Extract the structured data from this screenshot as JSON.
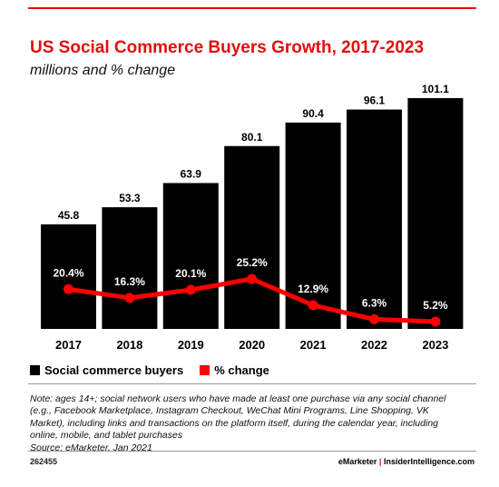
{
  "header": {
    "title": "US Social Commerce Buyers Growth, 2017-2023",
    "subtitle": "millions and % change"
  },
  "legend": {
    "items": [
      {
        "label": "Social commerce buyers",
        "color": "#000000"
      },
      {
        "label": "% change",
        "color": "#ff0000"
      }
    ]
  },
  "note": "Note: ages 14+; social network users who have made at least one purchase via any social channel (e.g., Facebook Marketplace, Instagram Checkout, WeChat Mini Programs, Line Shopping, VK Market), including links and transactions on the platform itself, during the calendar year, including online, mobile, and tablet purchases",
  "source": "Source: eMarketer, Jan 2021",
  "footer": {
    "id": "262455",
    "brand1": "eMarketer",
    "separator": "|",
    "brand2": "InsiderIntelligence.com"
  },
  "colors": {
    "bar": "#000000",
    "line": "#ff0000",
    "accent": "#e01010"
  },
  "chart_data": {
    "type": "bar",
    "title": "US Social Commerce Buyers Growth, 2017-2023",
    "subtitle": "millions and % change",
    "categories": [
      "2017",
      "2018",
      "2019",
      "2020",
      "2021",
      "2022",
      "2023"
    ],
    "series": [
      {
        "name": "Social commerce buyers",
        "type": "bar",
        "values": [
          45.8,
          53.3,
          63.9,
          80.1,
          90.4,
          96.1,
          101.1
        ],
        "labels": [
          "45.8",
          "53.3",
          "63.9",
          "80.1",
          "90.4",
          "96.1",
          "101.1"
        ]
      },
      {
        "name": "% change",
        "type": "line",
        "values": [
          20.4,
          16.3,
          20.1,
          25.2,
          12.9,
          6.3,
          5.2
        ],
        "labels": [
          "20.4%",
          "16.3%",
          "20.1%",
          "25.2%",
          "12.9%",
          "6.3%",
          "5.2%"
        ]
      }
    ],
    "ylim": [
      0,
      101.1
    ],
    "grid": false,
    "legend_position": "bottom-left"
  }
}
